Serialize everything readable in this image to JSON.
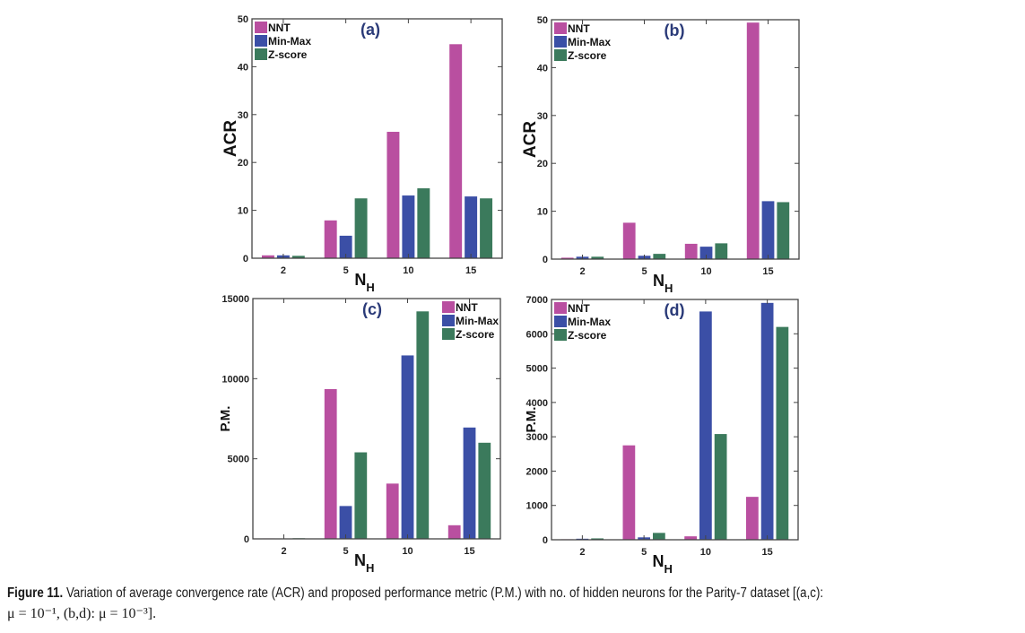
{
  "chart_data": [
    {
      "type": "bar",
      "panel": "a",
      "title": "(a)",
      "xlabel": "N_H",
      "ylabel": "ACR",
      "categories": [
        "2",
        "5",
        "10",
        "15"
      ],
      "ylim": [
        0,
        50
      ],
      "yticks": [
        0,
        10,
        20,
        30,
        40,
        50
      ],
      "legend": "top-left",
      "series": [
        {
          "name": "NNT",
          "values": [
            0.6,
            7.9,
            26.4,
            44.7
          ]
        },
        {
          "name": "Min-Max",
          "values": [
            0.6,
            4.7,
            13.1,
            12.9
          ]
        },
        {
          "name": "Z-score",
          "values": [
            0.5,
            12.5,
            14.6,
            12.5
          ]
        }
      ]
    },
    {
      "type": "bar",
      "panel": "b",
      "title": "(b)",
      "xlabel": "N_H",
      "ylabel": "ACR",
      "categories": [
        "2",
        "5",
        "10",
        "15"
      ],
      "ylim": [
        0,
        50
      ],
      "yticks": [
        0,
        10,
        20,
        30,
        40,
        50
      ],
      "legend": "top-left",
      "series": [
        {
          "name": "NNT",
          "values": [
            0.3,
            7.6,
            3.2,
            49.4
          ]
        },
        {
          "name": "Min-Max",
          "values": [
            0.5,
            0.7,
            2.6,
            12.1
          ]
        },
        {
          "name": "Z-score",
          "values": [
            0.5,
            1.1,
            3.3,
            11.9
          ]
        }
      ]
    },
    {
      "type": "bar",
      "panel": "c",
      "title": "(c)",
      "xlabel": "N_H",
      "ylabel": "P.M.",
      "categories": [
        "2",
        "5",
        "10",
        "15"
      ],
      "ylim": [
        0,
        15000
      ],
      "yticks": [
        0,
        5000,
        10000,
        15000
      ],
      "legend": "top-right",
      "series": [
        {
          "name": "NNT",
          "values": [
            30,
            9350,
            3450,
            850
          ]
        },
        {
          "name": "Min-Max",
          "values": [
            20,
            2050,
            11450,
            6950
          ]
        },
        {
          "name": "Z-score",
          "values": [
            40,
            5400,
            14200,
            6000
          ]
        }
      ]
    },
    {
      "type": "bar",
      "panel": "d",
      "title": "(d)",
      "xlabel": "N_H",
      "ylabel": "P.M.",
      "categories": [
        "2",
        "5",
        "10",
        "15"
      ],
      "ylim": [
        0,
        7000
      ],
      "yticks": [
        0,
        1000,
        2000,
        3000,
        4000,
        5000,
        6000,
        7000
      ],
      "legend": "top-left",
      "series": [
        {
          "name": "NNT",
          "values": [
            15,
            2750,
            100,
            1250
          ]
        },
        {
          "name": "Min-Max",
          "values": [
            30,
            70,
            6650,
            6900
          ]
        },
        {
          "name": "Z-score",
          "values": [
            40,
            200,
            3080,
            6200
          ]
        }
      ]
    }
  ],
  "colors": {
    "NNT": "#b94fa0",
    "Min-Max": "#3b4fa6",
    "Z-score": "#3b7a5c",
    "panel_title": "#2a3a78"
  },
  "caption": {
    "label": "Figure 11.",
    "text": " Variation of average convergence rate (ACR) and proposed performance metric (P.M.) with no. of hidden neurons for the Parity-7 dataset [(a,c):",
    "line2": "μ = 10⁻¹,  (b,d):  μ = 10⁻³]."
  }
}
